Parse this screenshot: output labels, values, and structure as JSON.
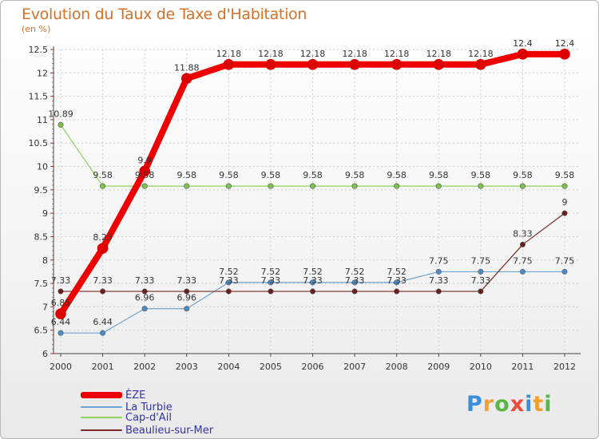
{
  "title": "Evolution du Taux de Taxe d'Habitation",
  "subtitle": "(en %)",
  "logo": {
    "letters": [
      "P",
      "r",
      "o",
      "x",
      "i",
      "t",
      "i"
    ],
    "colors": [
      "#3b8fd9",
      "#f0a030",
      "#57b846",
      "#e84b3c",
      "#3b8fd9",
      "#f0a030",
      "#57b846"
    ]
  },
  "chart_data": {
    "type": "line",
    "x": [
      "2000",
      "2001",
      "2002",
      "2003",
      "2004",
      "2005",
      "2006",
      "2007",
      "2008",
      "2009",
      "2010",
      "2011",
      "2012"
    ],
    "yticks": [
      "6",
      "6.5",
      "7",
      "7.5",
      "8",
      "8.5",
      "9",
      "9.5",
      "10",
      "10.5",
      "11",
      "11.5",
      "12",
      "12.5"
    ],
    "ylim": [
      6,
      12.5
    ],
    "series": [
      {
        "name": "Cap-d'Ail",
        "color": "#8fd45a",
        "marker": "#7cc54a",
        "width": 1.2,
        "values": [
          10.89,
          9.58,
          9.58,
          9.58,
          9.58,
          9.58,
          9.58,
          9.58,
          9.58,
          9.58,
          9.58,
          9.58,
          9.58
        ],
        "labels": [
          "10.89",
          "9.58",
          "9.58",
          "9.58",
          "9.58",
          "9.58",
          "9.58",
          "9.58",
          "9.58",
          "9.58",
          "9.58",
          "9.58",
          "9.58"
        ]
      },
      {
        "name": "La Turbie",
        "color": "#6fa3d0",
        "marker": "#4a8cc8",
        "width": 1.2,
        "values": [
          6.44,
          6.44,
          6.96,
          6.96,
          7.52,
          7.52,
          7.52,
          7.52,
          7.52,
          7.75,
          7.75,
          7.75,
          7.75
        ],
        "labels": [
          "6.44",
          "6.44",
          "6.96",
          "6.96",
          "7.52",
          "7.52",
          "7.52",
          "7.52",
          "7.52",
          "7.75",
          "7.75",
          "7.75",
          "7.75"
        ]
      },
      {
        "name": "Beaulieu-sur-Mer",
        "color": "#7a2a2a",
        "marker": "#6a1f1f",
        "width": 1.2,
        "values": [
          7.33,
          7.33,
          7.33,
          7.33,
          7.33,
          7.33,
          7.33,
          7.33,
          7.33,
          7.33,
          7.33,
          8.33,
          9
        ],
        "labels": [
          "7.33",
          "7.33",
          "7.33",
          "7.33",
          "7.33",
          "7.33",
          "7.33",
          "7.33",
          "7.33",
          "7.33",
          "7.33",
          "8.33",
          "9"
        ]
      },
      {
        "name": "ÈZE",
        "color": "#ee0000",
        "marker": "#dd0000",
        "width": 8,
        "values": [
          6.85,
          8.25,
          9.9,
          11.88,
          12.18,
          12.18,
          12.18,
          12.18,
          12.18,
          12.18,
          12.18,
          12.4,
          12.4
        ],
        "labels": [
          "6.85",
          "8.25",
          "9.9",
          "11.88",
          "12.18",
          "12.18",
          "12.18",
          "12.18",
          "12.18",
          "12.18",
          "12.18",
          "12.4",
          "12.4"
        ]
      }
    ],
    "legend_order": [
      "ÈZE",
      "La Turbie",
      "Cap-d'Ail",
      "Beaulieu-sur-Mer"
    ],
    "legend_colors": [
      "#ee0000",
      "#6fa3d0",
      "#8fd45a",
      "#7a2a2a"
    ]
  }
}
